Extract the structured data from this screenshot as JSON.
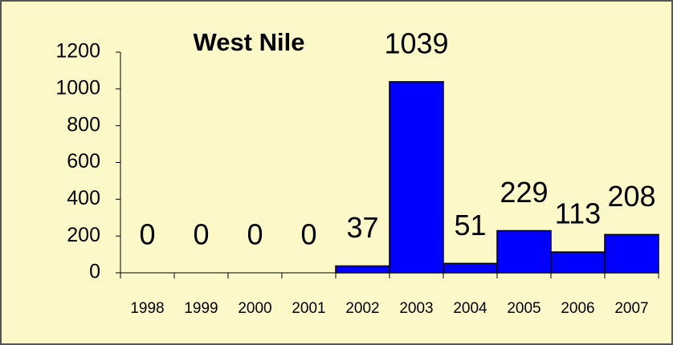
{
  "chart_data": {
    "type": "bar",
    "title": "West Nile",
    "categories": [
      "1998",
      "1999",
      "2000",
      "2001",
      "2002",
      "2003",
      "2004",
      "2005",
      "2006",
      "2007"
    ],
    "values": [
      0,
      0,
      0,
      0,
      37,
      1039,
      51,
      229,
      113,
      208
    ],
    "color": "#0000ff",
    "ylim": [
      0,
      1200
    ],
    "yticks": [
      0,
      200,
      400,
      600,
      800,
      1000,
      1200
    ],
    "grid": false
  }
}
